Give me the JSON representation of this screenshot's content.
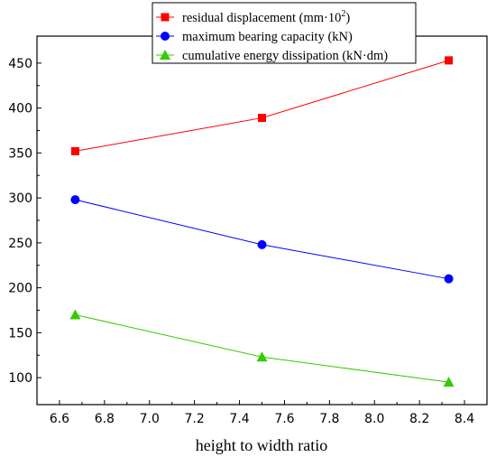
{
  "chart_data": {
    "type": "line",
    "xlabel": "height to width ratio",
    "ylabel": "",
    "xlim": [
      6.5,
      8.5
    ],
    "ylim": [
      70,
      480
    ],
    "x_ticks": [
      "6.6",
      "6.8",
      "7.0",
      "7.2",
      "7.4",
      "7.6",
      "7.8",
      "8.0",
      "8.2",
      "8.4"
    ],
    "y_ticks": [
      "100",
      "150",
      "200",
      "250",
      "300",
      "350",
      "400",
      "450"
    ],
    "grid": false,
    "legend_position": "top-center",
    "x": [
      6.67,
      7.5,
      8.33
    ],
    "series": [
      {
        "name": "residual displacement (mm·10",
        "name_superscript": "2",
        "name_suffix": ")",
        "values": [
          352,
          389,
          453
        ],
        "color": "#ff0000",
        "marker": "square"
      },
      {
        "name": "maximum bearing capacity (kN)",
        "values": [
          298,
          248,
          210
        ],
        "color": "#0000ff",
        "marker": "circle"
      },
      {
        "name": "cumulative energy dissipation (kN·dm)",
        "values": [
          170,
          123,
          95
        ],
        "color": "#33cc00",
        "marker": "triangle"
      }
    ]
  }
}
